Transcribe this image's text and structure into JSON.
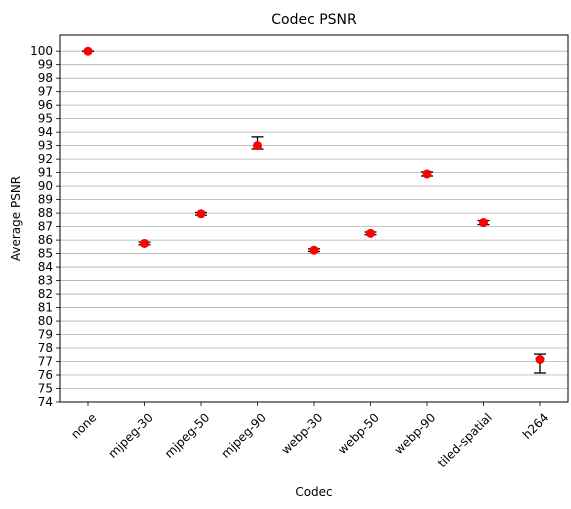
{
  "chart_data": {
    "type": "scatter",
    "title": "Codec PSNR",
    "xlabel": "Codec",
    "ylabel": "Average PSNR",
    "categories": [
      "none",
      "mjpeg-30",
      "mjpeg-50",
      "mjpeg-90",
      "webp-30",
      "webp-50",
      "webp-90",
      "tiled-spatial",
      "h264"
    ],
    "series": [
      {
        "values": [
          100,
          85.75,
          87.95,
          93.0,
          85.25,
          86.5,
          90.9,
          87.3,
          77.15
        ],
        "error_low": [
          100,
          85.65,
          87.85,
          92.75,
          85.15,
          86.4,
          90.75,
          87.15,
          76.15
        ],
        "error_high": [
          100,
          85.85,
          88.05,
          93.65,
          85.35,
          86.6,
          91.05,
          87.45,
          77.55
        ],
        "color": "#ff0000",
        "marker": "circle",
        "error_color": "#000000"
      }
    ],
    "yticks": [
      74,
      75,
      76,
      77,
      78,
      79,
      80,
      81,
      82,
      83,
      84,
      85,
      86,
      87,
      88,
      89,
      90,
      91,
      92,
      93,
      94,
      95,
      96,
      97,
      98,
      99,
      100
    ],
    "ylim": [
      74,
      101.2
    ],
    "grid": "horizontal",
    "xtick_rotation": 45
  }
}
